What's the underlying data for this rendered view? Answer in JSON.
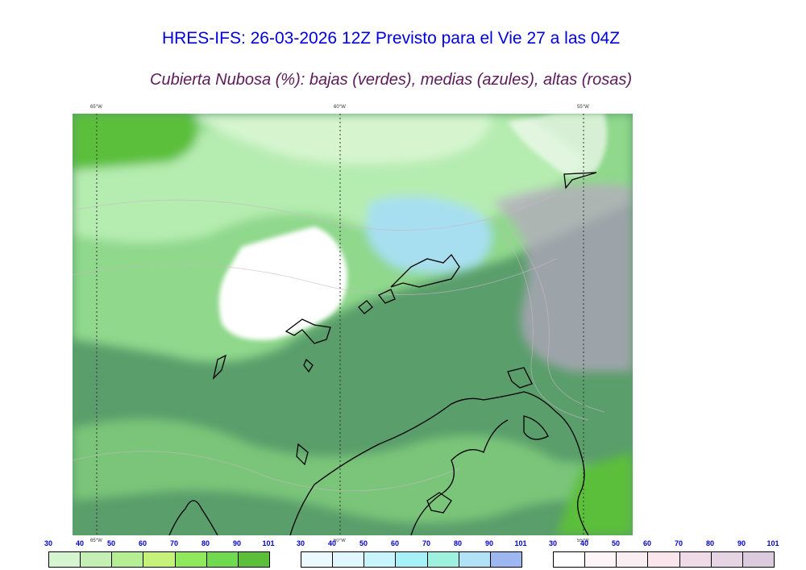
{
  "title": "HRES-IFS: 26-03-2026 12Z Previsto para el Vie 27 a las 04Z",
  "subtitle": "Cubierta Nubosa (%): bajas (verdes), medias (azules), altas (rosas)",
  "map": {
    "longitude_labels": [
      "65°W",
      "60°W",
      "55°W"
    ],
    "gridlines": "dotted",
    "coastline_color": "#000000"
  },
  "legends": {
    "low": {
      "ticks": [
        "30",
        "40",
        "50",
        "60",
        "70",
        "80",
        "90",
        "101"
      ],
      "colors": [
        "#d4f5cf",
        "#c4f0b5",
        "#b6ee93",
        "#c7f27a",
        "#90e85c",
        "#6fd94f",
        "#5bbf3a"
      ]
    },
    "mid": {
      "ticks": [
        "30",
        "40",
        "50",
        "60",
        "70",
        "80",
        "90",
        "101"
      ],
      "colors": [
        "#eafaff",
        "#dff7fd",
        "#c8f4fb",
        "#a6f1f7",
        "#9cf2de",
        "#b1e2f7",
        "#9db8f0"
      ]
    },
    "high": {
      "ticks": [
        "30",
        "40",
        "50",
        "60",
        "70",
        "80",
        "90",
        "101"
      ],
      "colors": [
        "#ffffff",
        "#fdf5f8",
        "#fbeef3",
        "#fbe6ee",
        "#efdbe8",
        "#e6d3e4",
        "#dccadf"
      ]
    }
  }
}
